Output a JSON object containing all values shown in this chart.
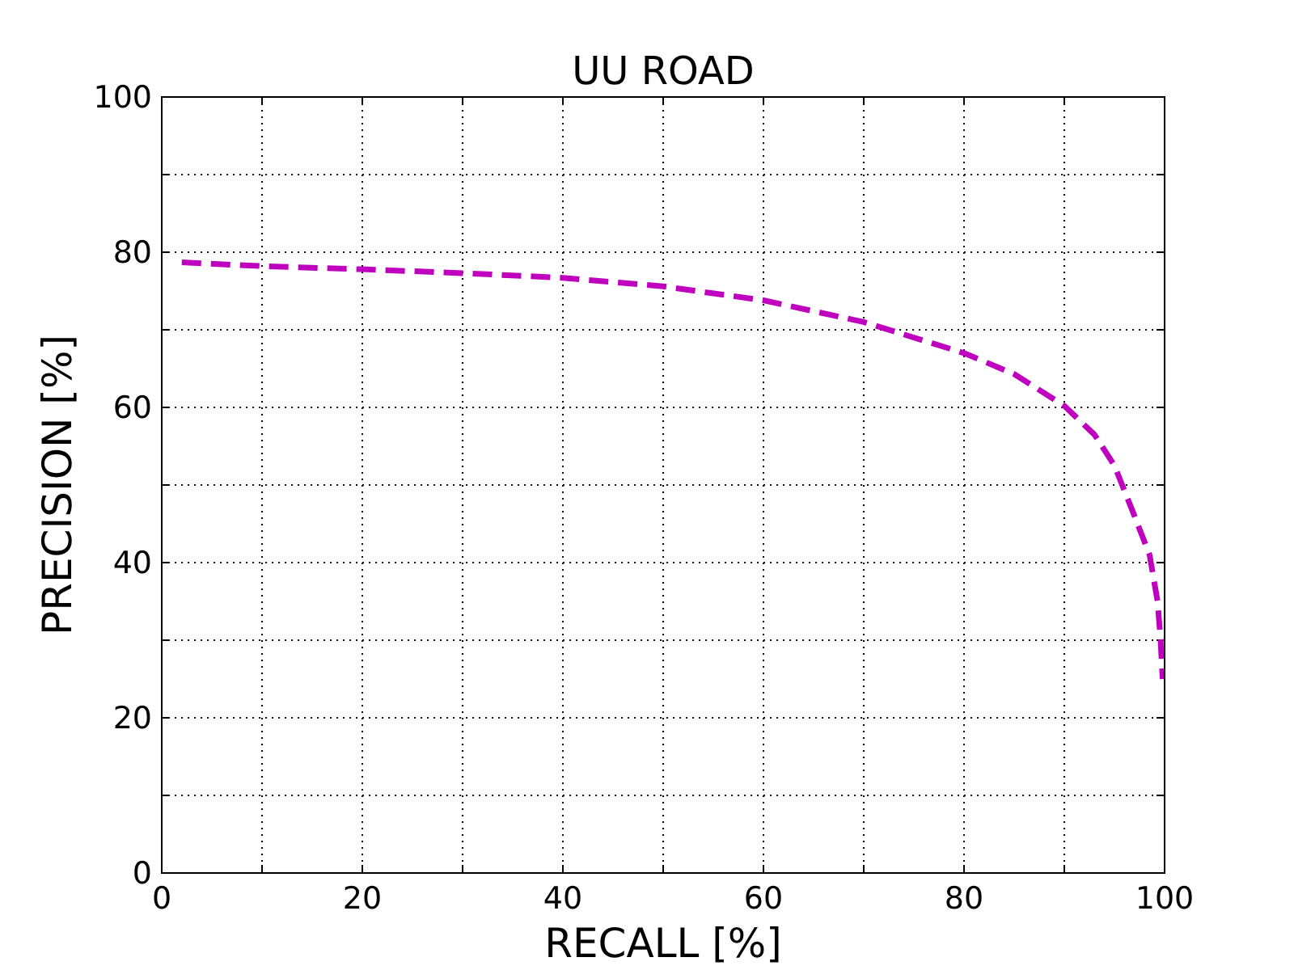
{
  "chart_data": {
    "type": "line",
    "title": "UU ROAD",
    "xlabel": "RECALL [%]",
    "ylabel": "PRECISION [%]",
    "x": [
      2,
      10,
      20,
      30,
      40,
      50,
      60,
      70,
      80,
      85,
      90,
      93,
      95,
      97,
      98.5,
      99.3,
      99.6,
      99.8
    ],
    "series": [
      {
        "color": "#bf00bf",
        "values": [
          78.7,
          78.2,
          77.8,
          77.3,
          76.7,
          75.6,
          73.8,
          71.0,
          67.0,
          64.3,
          60.2,
          56.5,
          52.5,
          46,
          41,
          35,
          30,
          25
        ]
      }
    ],
    "xlim": [
      0,
      100
    ],
    "ylim": [
      0,
      100
    ],
    "xticks": [
      0,
      {
        "value": 10,
        "label": null
      },
      20,
      {
        "value": 30,
        "label": null
      },
      40,
      {
        "value": 50,
        "label": null
      },
      60,
      {
        "value": 70,
        "label": null
      },
      80,
      {
        "value": 90,
        "label": null
      },
      100
    ],
    "yticks": [
      0,
      {
        "value": 10,
        "label": null
      },
      20,
      {
        "value": 30,
        "label": null
      },
      40,
      {
        "value": 50,
        "label": null
      },
      60,
      {
        "value": 70,
        "label": null
      },
      80,
      {
        "value": 90,
        "label": null
      },
      100
    ],
    "grid": true,
    "line_style": "dashed"
  }
}
